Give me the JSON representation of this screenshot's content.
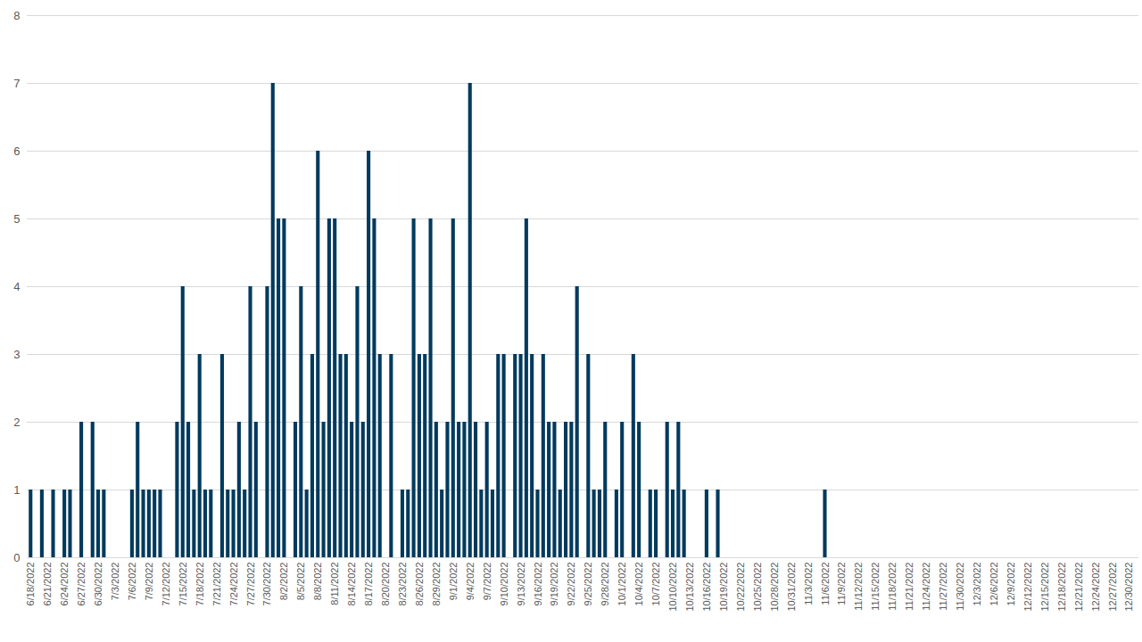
{
  "chart_data": {
    "type": "bar",
    "categories": [
      "6/18/2022",
      null,
      null,
      "6/21/2022",
      null,
      null,
      "6/24/2022",
      null,
      null,
      "6/27/2022",
      null,
      null,
      "6/30/2022",
      null,
      null,
      "7/3/2022",
      null,
      null,
      "7/6/2022",
      null,
      null,
      "7/9/2022",
      null,
      null,
      "7/12/2022",
      null,
      null,
      "7/15/2022",
      null,
      null,
      "7/18/2022",
      null,
      null,
      "7/21/2022",
      null,
      null,
      "7/24/2022",
      null,
      null,
      "7/27/2022",
      null,
      null,
      "7/30/2022",
      null,
      null,
      "8/2/2022",
      null,
      null,
      "8/5/2022",
      null,
      null,
      "8/8/2022",
      null,
      null,
      "8/11/2022",
      null,
      null,
      "8/14/2022",
      null,
      null,
      "8/17/2022",
      null,
      null,
      "8/20/2022",
      null,
      null,
      "8/23/2022",
      null,
      null,
      "8/26/2022",
      null,
      null,
      "8/29/2022",
      null,
      null,
      "9/1/2022",
      null,
      null,
      "9/4/2022",
      null,
      null,
      "9/7/2022",
      null,
      null,
      "9/10/2022",
      null,
      null,
      "9/13/2022",
      null,
      null,
      "9/16/2022",
      null,
      null,
      "9/19/2022",
      null,
      null,
      "9/22/2022",
      null,
      null,
      "9/25/2022",
      null,
      null,
      "9/28/2022",
      null,
      null,
      "10/1/2022",
      null,
      null,
      "10/4/2022",
      null,
      null,
      "10/7/2022",
      null,
      null,
      "10/10/2022",
      null,
      null,
      "10/13/2022",
      null,
      null,
      "10/16/2022",
      null,
      null,
      "10/19/2022",
      null,
      null,
      "10/22/2022",
      null,
      null,
      "10/25/2022",
      null,
      null,
      "10/28/2022",
      null,
      null,
      "10/31/2022",
      null,
      null,
      "11/3/2022",
      null,
      null,
      "11/6/2022",
      null,
      null,
      "11/9/2022",
      null,
      null,
      "11/12/2022",
      null,
      null,
      "11/15/2022",
      null,
      null,
      "11/18/2022",
      null,
      null,
      "11/21/2022",
      null,
      null,
      "11/24/2022",
      null,
      null,
      "11/27/2022",
      null,
      null,
      "11/30/2022",
      null,
      null,
      "12/3/2022",
      null,
      null,
      "12/6/2022",
      null,
      null,
      "12/9/2022",
      null,
      null,
      "12/12/2022",
      null,
      null,
      "12/15/2022",
      null,
      null,
      "12/18/2022",
      null,
      null,
      "12/21/2022",
      null,
      null,
      "12/24/2022",
      null,
      null,
      "12/27/2022",
      null,
      null,
      "12/30/2022",
      null
    ],
    "values": [
      1,
      0,
      1,
      0,
      1,
      0,
      1,
      1,
      0,
      2,
      0,
      2,
      1,
      1,
      0,
      0,
      0,
      0,
      1,
      2,
      1,
      1,
      1,
      1,
      0,
      0,
      2,
      4,
      2,
      1,
      3,
      1,
      1,
      0,
      3,
      1,
      1,
      2,
      1,
      4,
      2,
      0,
      4,
      7,
      5,
      5,
      0,
      2,
      4,
      1,
      3,
      6,
      2,
      5,
      5,
      3,
      3,
      2,
      4,
      2,
      6,
      5,
      3,
      0,
      3,
      0,
      1,
      1,
      5,
      3,
      3,
      5,
      2,
      1,
      2,
      5,
      2,
      2,
      7,
      2,
      1,
      2,
      1,
      3,
      3,
      0,
      3,
      3,
      5,
      3,
      1,
      3,
      2,
      2,
      1,
      2,
      2,
      4,
      0,
      3,
      1,
      1,
      2,
      0,
      1,
      2,
      0,
      3,
      2,
      0,
      1,
      1,
      0,
      2,
      1,
      2,
      1,
      0,
      0,
      0,
      1,
      0,
      1,
      0,
      0,
      0,
      0,
      0,
      0,
      0,
      0,
      0,
      0,
      0,
      0,
      0,
      0,
      0,
      0,
      0,
      0,
      1,
      0,
      0,
      0,
      0,
      0,
      0,
      0,
      0,
      0,
      0,
      0,
      0,
      0,
      0,
      0,
      0,
      0,
      0,
      0,
      0,
      0,
      0,
      0,
      0,
      0,
      0,
      0,
      0,
      0,
      0,
      0,
      0,
      0,
      0,
      0,
      0,
      0,
      0,
      0,
      0,
      0,
      0,
      0,
      0,
      0,
      0,
      0,
      0,
      0,
      0,
      0,
      0,
      0,
      0,
      0
    ],
    "color": "#003a5d",
    "ylim": [
      0,
      8
    ],
    "yticks": [
      0,
      1,
      2,
      3,
      4,
      5,
      6,
      7,
      8
    ],
    "grid": true
  }
}
